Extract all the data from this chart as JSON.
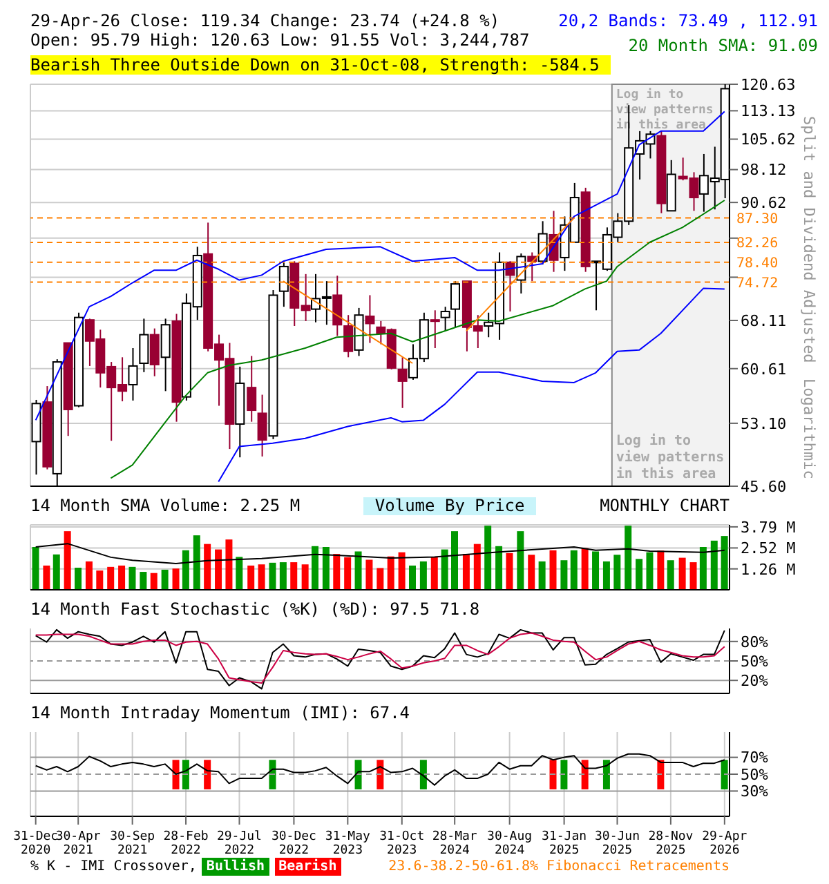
{
  "chart_data": [
    {
      "type": "candlestick",
      "title": "29-Apr-26 Close: 119.34 Change: 23.74 (+24.8 %)",
      "subtitle": "Open: 95.79 High: 120.63 Low: 91.55 Vol: 3,244,787",
      "ylabel": "Split and Dividend Adjusted",
      "annotations": [
        "Bearish Three Outside Down on 31-Oct-08, Strength: -584.5",
        "Logarithmic",
        "Log in to view patterns in this area"
      ],
      "x": [
        "2020-12-31",
        "2021-01-31",
        "2021-02-28",
        "2021-03-31",
        "2021-04-30",
        "2021-05-31",
        "2021-06-30",
        "2021-07-31",
        "2021-08-31",
        "2021-09-30",
        "2021-10-31",
        "2021-11-30",
        "2021-12-31",
        "2022-01-31",
        "2022-02-28",
        "2022-03-31",
        "2022-04-30",
        "2022-05-31",
        "2022-06-30",
        "2022-07-29",
        "2022-08-31",
        "2022-09-30",
        "2022-10-31",
        "2022-11-30",
        "2022-12-30",
        "2023-01-31",
        "2023-02-28",
        "2023-03-31",
        "2023-04-30",
        "2023-05-31",
        "2023-06-30",
        "2023-07-31",
        "2023-08-31",
        "2023-09-30",
        "2023-10-31",
        "2023-11-30",
        "2023-12-31",
        "2024-01-31",
        "2024-02-29",
        "2024-03-28",
        "2024-04-30",
        "2024-05-31",
        "2024-06-30",
        "2024-07-31",
        "2024-08-30",
        "2024-09-30",
        "2024-10-31",
        "2024-11-30",
        "2024-12-31",
        "2025-01-31",
        "2025-02-28",
        "2025-03-31",
        "2025-04-30",
        "2025-05-31",
        "2025-06-30",
        "2025-07-31",
        "2025-08-31",
        "2025-09-30",
        "2025-10-31",
        "2025-11-28",
        "2025-12-31",
        "2026-01-31",
        "2026-02-28",
        "2026-03-31",
        "2026-04-29"
      ],
      "ohlc": [
        [
          50.8,
          56.2,
          46.9,
          55.7
        ],
        [
          55.9,
          58.1,
          47.5,
          47.8
        ],
        [
          47.0,
          62.0,
          45.6,
          61.6
        ],
        [
          64.5,
          64.5,
          51.5,
          54.9
        ],
        [
          55.4,
          69.4,
          55.2,
          68.6
        ],
        [
          68.2,
          68.4,
          61.0,
          64.8
        ],
        [
          65.1,
          66.6,
          57.9,
          60.0
        ],
        [
          60.9,
          61.6,
          50.9,
          57.9
        ],
        [
          58.3,
          62.3,
          56.0,
          57.4
        ],
        [
          58.3,
          63.7,
          56.1,
          61.0
        ],
        [
          61.4,
          68.4,
          60.1,
          65.8
        ],
        [
          65.8,
          66.8,
          59.5,
          61.2
        ],
        [
          62.3,
          68.4,
          57.4,
          67.4
        ],
        [
          68.0,
          69.2,
          53.3,
          55.9
        ],
        [
          56.6,
          72.7,
          56.1,
          71.0
        ],
        [
          70.4,
          81.4,
          68.2,
          79.7
        ],
        [
          80.0,
          86.3,
          63.2,
          63.7
        ],
        [
          64.3,
          65.8,
          55.4,
          61.9
        ],
        [
          62.1,
          64.5,
          49.9,
          53.0
        ],
        [
          53.0,
          60.9,
          48.9,
          58.5
        ],
        [
          57.9,
          62.5,
          53.3,
          54.8
        ],
        [
          54.4,
          56.9,
          49.0,
          51.0
        ],
        [
          51.5,
          73.3,
          51.1,
          72.4
        ],
        [
          73.1,
          78.6,
          70.4,
          77.6
        ],
        [
          78.2,
          78.6,
          67.2,
          70.2
        ],
        [
          70.6,
          76.2,
          68.0,
          69.8
        ],
        [
          70.0,
          76.2,
          67.8,
          71.8
        ],
        [
          71.9,
          74.9,
          67.4,
          72.1
        ],
        [
          72.4,
          75.9,
          65.6,
          67.4
        ],
        [
          67.2,
          69.0,
          62.3,
          63.2
        ],
        [
          63.4,
          70.2,
          62.5,
          69.0
        ],
        [
          68.8,
          72.4,
          64.5,
          67.6
        ],
        [
          67.0,
          68.0,
          64.3,
          66.0
        ],
        [
          66.6,
          66.8,
          60.5,
          60.7
        ],
        [
          60.5,
          62.3,
          55.1,
          58.8
        ],
        [
          59.3,
          64.3,
          59.0,
          62.1
        ],
        [
          62.1,
          69.4,
          61.6,
          68.2
        ],
        [
          68.2,
          69.8,
          63.7,
          68.0
        ],
        [
          68.6,
          70.4,
          66.4,
          69.6
        ],
        [
          70.0,
          74.9,
          67.0,
          74.4
        ],
        [
          74.9,
          74.9,
          63.2,
          67.0
        ],
        [
          67.2,
          69.0,
          63.7,
          66.4
        ],
        [
          67.2,
          69.4,
          65.4,
          67.8
        ],
        [
          67.6,
          80.3,
          65.0,
          78.4
        ],
        [
          78.4,
          78.6,
          69.6,
          76.0
        ],
        [
          75.1,
          80.1,
          72.7,
          79.5
        ],
        [
          79.5,
          80.3,
          74.9,
          78.6
        ],
        [
          78.6,
          86.6,
          78.0,
          84.0
        ],
        [
          83.8,
          88.8,
          76.6,
          78.8
        ],
        [
          79.3,
          87.6,
          76.8,
          85.8
        ],
        [
          82.3,
          95.0,
          82.3,
          91.7
        ],
        [
          92.9,
          93.9,
          76.6,
          77.6
        ],
        [
          78.4,
          78.6,
          69.8,
          78.6
        ],
        [
          77.1,
          85.3,
          76.8,
          83.8
        ],
        [
          83.3,
          88.3,
          82.3,
          86.6
        ],
        [
          86.6,
          114.7,
          85.8,
          103.4
        ],
        [
          101.9,
          107.7,
          95.8,
          105.2
        ],
        [
          104.4,
          107.7,
          100.8,
          106.9
        ],
        [
          106.5,
          107.7,
          88.3,
          90.4
        ],
        [
          88.8,
          100.4,
          88.8,
          97.0
        ],
        [
          96.5,
          101.0,
          95.6,
          96.0
        ],
        [
          96.1,
          97.5,
          88.8,
          91.7
        ],
        [
          92.5,
          101.9,
          88.6,
          96.7
        ],
        [
          95.3,
          103.7,
          89.1,
          96.1
        ],
        [
          95.79,
          120.63,
          91.55,
          119.34
        ]
      ],
      "colors": [
        "#ffffff",
        "#990033",
        "#ffffff",
        "#990033",
        "#ffffff",
        "#990033",
        "#990033",
        "#990033",
        "#990033",
        "#ffffff",
        "#ffffff",
        "#990033",
        "#ffffff",
        "#990033",
        "#ffffff",
        "#ffffff",
        "#990033",
        "#990033",
        "#990033",
        "#ffffff",
        "#990033",
        "#990033",
        "#ffffff",
        "#ffffff",
        "#990033",
        "#990033",
        "#ffffff",
        "#ffffff",
        "#990033",
        "#990033",
        "#ffffff",
        "#990033",
        "#990033",
        "#990033",
        "#990033",
        "#ffffff",
        "#ffffff",
        "#990033",
        "#ffffff",
        "#ffffff",
        "#990033",
        "#990033",
        "#ffffff",
        "#ffffff",
        "#990033",
        "#ffffff",
        "#990033",
        "#ffffff",
        "#990033",
        "#ffffff",
        "#ffffff",
        "#990033",
        "#ffffff",
        "#ffffff",
        "#ffffff",
        "#ffffff",
        "#ffffff",
        "#ffffff",
        "#990033",
        "#ffffff",
        "#990033",
        "#990033",
        "#ffffff",
        "#ffffff",
        "#ffffff"
      ],
      "series": [
        {
          "type": "line",
          "name": "20,2 Bands: 73.49 , 112.91",
          "color": "#0000ff",
          "x": [
            "2020-12-31",
            "2021-02-28",
            "2021-05-31",
            "2021-07-31",
            "2021-09-30",
            "2021-11-30",
            "2022-01-31",
            "2022-03-31",
            "2022-05-31",
            "2022-07-29",
            "2022-09-30",
            "2022-11-30",
            "2023-03-31",
            "2023-08-31",
            "2023-11-30",
            "2024-03-28",
            "2024-05-31",
            "2024-07-31",
            "2024-11-30",
            "2025-02-28",
            "2025-06-30",
            "2025-08-31",
            "2025-10-31",
            "2026-02-28",
            "2026-04-29"
          ],
          "values": [
            53.5,
            59.6,
            70.4,
            72.2,
            74.6,
            76.9,
            76.9,
            78.8,
            77.1,
            75.1,
            76.0,
            78.6,
            80.9,
            81.4,
            78.6,
            79.3,
            76.9,
            76.9,
            78.1,
            87.6,
            92.5,
            104.2,
            107.7,
            107.7,
            112.91
          ]
        },
        {
          "type": "line",
          "color": "#0000ff",
          "x": [
            "2022-05-31",
            "2022-07-29",
            "2022-10-31",
            "2023-01-31",
            "2023-05-31",
            "2023-09-30",
            "2023-10-31",
            "2023-12-31",
            "2024-02-29",
            "2024-05-31",
            "2024-07-31",
            "2024-11-30",
            "2025-02-28",
            "2025-04-30",
            "2025-06-30",
            "2025-08-31",
            "2025-10-31",
            "2026-02-28",
            "2026-04-29"
          ],
          "values": [
            46.1,
            50.2,
            50.6,
            51.2,
            52.7,
            53.8,
            53.3,
            53.5,
            55.6,
            60.1,
            60.1,
            58.8,
            58.6,
            60.0,
            63.2,
            63.4,
            66.0,
            73.6,
            73.49
          ]
        },
        {
          "type": "line",
          "name": "20 Month SMA: 91.09",
          "color": "#008000",
          "x": [
            "2021-07-31",
            "2021-09-30",
            "2021-12-31",
            "2022-02-28",
            "2022-04-30",
            "2022-06-30",
            "2022-09-30",
            "2023-01-31",
            "2023-04-30",
            "2023-09-30",
            "2023-11-30",
            "2024-02-29",
            "2024-05-31",
            "2024-07-31",
            "2024-12-31",
            "2025-03-31",
            "2025-05-31",
            "2025-06-30",
            "2025-09-30",
            "2025-12-31",
            "2026-03-31",
            "2026-04-29"
          ],
          "values": [
            46.5,
            48.0,
            53.2,
            56.8,
            60.0,
            61.1,
            61.9,
            63.7,
            65.4,
            66.0,
            64.7,
            66.4,
            68.2,
            68.0,
            70.6,
            73.5,
            74.9,
            77.6,
            82.3,
            85.3,
            89.6,
            91.09
          ]
        },
        {
          "type": "line",
          "color": "#ff8000",
          "x": [
            "2022-11-30",
            "2023-11-30"
          ],
          "values": [
            74.9,
            61.4
          ]
        },
        {
          "type": "line",
          "color": "#ff8000",
          "x": [
            "2024-04-30",
            "2025-02-28"
          ],
          "values": [
            66.4,
            87.3
          ]
        }
      ],
      "xlim": [
        "2020-12-16",
        "2026-05-13"
      ],
      "xticks": [
        "2020-12-31",
        "2021-04-30",
        "2021-09-30",
        "2022-02-28",
        "2022-07-29",
        "2022-12-30",
        "2023-05-31",
        "2023-10-31",
        "2024-03-28",
        "2024-08-30",
        "2025-01-31",
        "2025-06-30",
        "2025-11-28",
        "2026-04-29"
      ],
      "ylim": [
        45.6,
        120.63
      ],
      "yticks": [
        {
          "value": 45.6,
          "label": "45.60"
        },
        {
          "value": 53.1,
          "label": "53.10"
        },
        60.61,
        68.11,
        {
          "value": 75.62,
          "label": null
        },
        {
          "value": 83.12,
          "label": null
        },
        90.62,
        98.12,
        105.62,
        113.13,
        120.63
      ],
      "log": "y",
      "grid": true,
      "legend": "top right",
      "tick_labels": "y",
      "ref_lines": [
        {
          "axis": "y",
          "value": 87.3,
          "label": "87.30",
          "color": "#ff8000",
          "line_style": "dashed"
        },
        {
          "axis": "y",
          "value": 82.26,
          "label": "82.26",
          "color": "#ff8000",
          "line_style": "dashed"
        },
        {
          "axis": "y",
          "value": 78.4,
          "label": "78.40",
          "color": "#ff8000",
          "line_style": "dashed"
        },
        {
          "axis": "y",
          "value": 74.72,
          "label": "74.72",
          "color": "#ff8000",
          "line_style": "dashed"
        }
      ],
      "bands": [
        {
          "axis": "x",
          "from": "2025-06-15",
          "to": "2026-05-13",
          "label": "Log in to view patterns in this area",
          "color": "#f2f2f2"
        }
      ]
    },
    {
      "type": "bar",
      "title": "14 Month SMA Volume: 2.25 M",
      "annotations": [
        "Volume By Price",
        "MONTHLY CHART"
      ],
      "x": [
        "2020-12-31",
        "2021-01-31",
        "2021-02-28",
        "2021-03-31",
        "2021-04-30",
        "2021-05-31",
        "2021-06-30",
        "2021-07-31",
        "2021-08-31",
        "2021-09-30",
        "2021-10-31",
        "2021-11-30",
        "2021-12-31",
        "2022-01-31",
        "2022-02-28",
        "2022-03-31",
        "2022-04-30",
        "2022-05-31",
        "2022-06-30",
        "2022-07-29",
        "2022-08-31",
        "2022-09-30",
        "2022-10-31",
        "2022-11-30",
        "2022-12-30",
        "2023-01-31",
        "2023-02-28",
        "2023-03-31",
        "2023-04-30",
        "2023-05-31",
        "2023-06-30",
        "2023-07-31",
        "2023-08-31",
        "2023-09-30",
        "2023-10-31",
        "2023-11-30",
        "2023-12-31",
        "2024-01-31",
        "2024-02-29",
        "2024-03-28",
        "2024-04-30",
        "2024-05-31",
        "2024-06-30",
        "2024-07-31",
        "2024-08-30",
        "2024-09-30",
        "2024-10-31",
        "2024-11-30",
        "2024-12-31",
        "2025-01-31",
        "2025-02-28",
        "2025-03-31",
        "2025-04-30",
        "2025-05-31",
        "2025-06-30",
        "2025-07-31",
        "2025-08-31",
        "2025-09-30",
        "2025-10-31",
        "2025-11-28",
        "2025-12-31",
        "2026-01-31",
        "2026-02-28",
        "2026-03-31",
        "2026-04-29"
      ],
      "series": [
        {
          "type": "bar",
          "values": [
            2.58,
            1.46,
            2.13,
            3.53,
            1.33,
            1.71,
            1.16,
            1.38,
            1.46,
            1.38,
            1.08,
            1.01,
            1.21,
            1.28,
            2.38,
            3.28,
            2.76,
            2.43,
            3.03,
            1.98,
            1.46,
            1.53,
            1.63,
            1.66,
            1.66,
            1.53,
            2.63,
            2.58,
            2.16,
            1.96,
            2.31,
            1.81,
            1.31,
            2.01,
            2.26,
            1.46,
            1.71,
            1.98,
            2.43,
            3.53,
            2.16,
            2.76,
            3.86,
            2.63,
            2.21,
            3.53,
            2.11,
            1.71,
            2.38,
            1.78,
            2.38,
            2.51,
            2.31,
            1.71,
            2.11,
            3.86,
            1.86,
            2.26,
            2.36,
            1.78,
            1.93,
            1.66,
            2.58,
            2.96,
            3.24
          ],
          "colors": [
            "#009900",
            "#ff0000",
            "#009900",
            "#ff0000",
            "#009900",
            "#ff0000",
            "#ff0000",
            "#ff0000",
            "#ff0000",
            "#009900",
            "#009900",
            "#ff0000",
            "#009900",
            "#ff0000",
            "#009900",
            "#009900",
            "#ff0000",
            "#ff0000",
            "#ff0000",
            "#009900",
            "#ff0000",
            "#ff0000",
            "#009900",
            "#009900",
            "#ff0000",
            "#ff0000",
            "#009900",
            "#009900",
            "#ff0000",
            "#ff0000",
            "#009900",
            "#ff0000",
            "#ff0000",
            "#ff0000",
            "#ff0000",
            "#009900",
            "#009900",
            "#ff0000",
            "#009900",
            "#009900",
            "#ff0000",
            "#ff0000",
            "#009900",
            "#009900",
            "#ff0000",
            "#009900",
            "#ff0000",
            "#009900",
            "#ff0000",
            "#009900",
            "#009900",
            "#ff0000",
            "#009900",
            "#009900",
            "#009900",
            "#009900",
            "#009900",
            "#009900",
            "#ff0000",
            "#009900",
            "#ff0000",
            "#ff0000",
            "#009900",
            "#009900",
            "#009900"
          ]
        },
        {
          "type": "line",
          "color": "#000000",
          "x": [
            "2020-12-31",
            "2021-03-31",
            "2021-07-31",
            "2021-09-30",
            "2022-01-31",
            "2022-04-30",
            "2022-09-30",
            "2023-02-28",
            "2023-04-30",
            "2023-09-30",
            "2024-01-31",
            "2024-07-31",
            "2024-10-31",
            "2025-02-28",
            "2025-04-30",
            "2025-07-31",
            "2025-09-30",
            "2026-02-28",
            "2026-04-29"
          ],
          "values": [
            2.58,
            2.78,
            1.96,
            1.78,
            1.58,
            1.76,
            1.88,
            2.13,
            2.08,
            1.91,
            1.98,
            2.28,
            2.41,
            2.58,
            2.38,
            2.46,
            2.33,
            2.26,
            2.38
          ]
        }
      ],
      "xlim": [
        "2020-12-16",
        "2026-05-13"
      ],
      "xticks": [
        "2020-12-31",
        "2021-04-30",
        "2021-09-30",
        "2022-02-28",
        "2022-07-29",
        "2022-12-30",
        "2023-05-31",
        "2023-10-31",
        "2024-03-28",
        "2024-08-30",
        "2025-01-31",
        "2025-06-30",
        "2025-11-28",
        "2026-04-29"
      ],
      "ylim": [
        0,
        3.91
      ],
      "yticks": [
        {
          "value": 1.26,
          "label": "1.26 M"
        },
        {
          "value": 2.52,
          "label": "2.52 M"
        },
        {
          "value": 3.79,
          "label": "3.79 M"
        }
      ],
      "grid": true,
      "tick_labels": "y"
    },
    {
      "type": "line",
      "title": "14 Month Fast Stochastic (%K) (%D): 97.5 71.8",
      "x": [
        "2020-12-31",
        "2021-01-31",
        "2021-02-28",
        "2021-03-31",
        "2021-04-30",
        "2021-05-31",
        "2021-06-30",
        "2021-07-31",
        "2021-08-31",
        "2021-09-30",
        "2021-10-31",
        "2021-11-30",
        "2021-12-31",
        "2022-01-31",
        "2022-02-28",
        "2022-03-31",
        "2022-04-30",
        "2022-05-31",
        "2022-06-30",
        "2022-07-29",
        "2022-08-31",
        "2022-09-30",
        "2022-10-31",
        "2022-11-30",
        "2022-12-30",
        "2023-01-31",
        "2023-02-28",
        "2023-03-31",
        "2023-04-30",
        "2023-05-31",
        "2023-06-30",
        "2023-07-31",
        "2023-08-31",
        "2023-09-30",
        "2023-10-31",
        "2023-11-30",
        "2023-12-31",
        "2024-01-31",
        "2024-02-29",
        "2024-03-28",
        "2024-04-30",
        "2024-05-31",
        "2024-06-30",
        "2024-07-31",
        "2024-08-30",
        "2024-09-30",
        "2024-10-31",
        "2024-11-30",
        "2024-12-31",
        "2025-01-31",
        "2025-02-28",
        "2025-03-31",
        "2025-04-30",
        "2025-05-31",
        "2025-06-30",
        "2025-07-31",
        "2025-08-31",
        "2025-09-30",
        "2025-10-31",
        "2025-11-28",
        "2025-12-31",
        "2026-01-31",
        "2026-02-28",
        "2026-03-31",
        "2026-04-29"
      ],
      "series": [
        {
          "color": "#000000",
          "values": [
            89,
            79,
            98,
            85,
            95,
            91,
            88,
            76,
            74,
            79,
            88,
            79,
            95,
            47,
            95,
            95,
            37,
            34,
            12,
            24,
            18,
            7,
            63,
            76,
            58,
            56,
            60,
            61,
            53,
            42,
            68,
            66,
            63,
            42,
            37,
            42,
            58,
            55,
            69,
            93,
            60,
            56,
            61,
            91,
            85,
            98,
            93,
            93,
            67,
            86,
            86,
            44,
            45,
            60,
            69,
            79,
            81,
            83,
            48,
            61,
            56,
            51,
            60,
            60,
            97
          ]
        },
        {
          "color": "#cc0044",
          "values": [
            90,
            90,
            91,
            91,
            91,
            88,
            82,
            76,
            76,
            76,
            80,
            82,
            82,
            74,
            79,
            80,
            76,
            53,
            24,
            21,
            18,
            16,
            40,
            66,
            63,
            61,
            60,
            61,
            57,
            52,
            56,
            61,
            65,
            53,
            39,
            42,
            47,
            50,
            54,
            74,
            74,
            66,
            60,
            72,
            85,
            91,
            93,
            88,
            82,
            80,
            79,
            65,
            52,
            56,
            66,
            76,
            80,
            74,
            67,
            63,
            58,
            56,
            56,
            58,
            72
          ]
        }
      ],
      "xlim": [
        "2020-12-16",
        "2026-05-13"
      ],
      "xticks": [
        "2020-12-31",
        "2021-04-30",
        "2021-09-30",
        "2022-02-28",
        "2022-07-29",
        "2022-12-30",
        "2023-05-31",
        "2023-10-31",
        "2024-03-28",
        "2024-08-30",
        "2025-01-31",
        "2025-06-30",
        "2025-11-28",
        "2026-04-29"
      ],
      "ylim": [
        0,
        100
      ],
      "yticks": [
        {
          "value": 20,
          "label": "20%"
        },
        {
          "value": 50,
          "label": "50%"
        },
        {
          "value": 80,
          "label": "80%"
        }
      ],
      "grid": "x",
      "tick_labels": "y",
      "ref_lines": [
        {
          "axis": "y",
          "value": 20,
          "color": "#999999"
        },
        {
          "axis": "y",
          "value": 50,
          "color": "#999999",
          "line_style": "dashed"
        },
        {
          "axis": "y",
          "value": 80,
          "color": "#999999"
        }
      ]
    },
    {
      "type": "line",
      "title": "14 Month Intraday Momentum (IMI): 67.4",
      "legend_title": "% K - IMI Crossover,",
      "annotations": [
        "23.6-38.2-50-61.8% Fibonacci Retracements"
      ],
      "x": [
        "2020-12-31",
        "2021-01-31",
        "2021-02-28",
        "2021-03-31",
        "2021-04-30",
        "2021-05-31",
        "2021-06-30",
        "2021-07-31",
        "2021-08-31",
        "2021-09-30",
        "2021-10-31",
        "2021-11-30",
        "2021-12-31",
        "2022-01-31",
        "2022-02-28",
        "2022-03-31",
        "2022-04-30",
        "2022-05-31",
        "2022-06-30",
        "2022-07-29",
        "2022-08-31",
        "2022-09-30",
        "2022-10-31",
        "2022-11-30",
        "2022-12-30",
        "2023-01-31",
        "2023-02-28",
        "2023-03-31",
        "2023-04-30",
        "2023-05-31",
        "2023-06-30",
        "2023-07-31",
        "2023-08-31",
        "2023-09-30",
        "2023-10-31",
        "2023-11-30",
        "2023-12-31",
        "2024-01-31",
        "2024-02-29",
        "2024-03-28",
        "2024-04-30",
        "2024-05-31",
        "2024-06-30",
        "2024-07-31",
        "2024-08-30",
        "2024-09-30",
        "2024-10-31",
        "2024-11-30",
        "2024-12-31",
        "2025-01-31",
        "2025-02-28",
        "2025-03-31",
        "2025-04-30",
        "2025-05-31",
        "2025-06-30",
        "2025-07-31",
        "2025-08-31",
        "2025-09-30",
        "2025-10-31",
        "2025-11-28",
        "2025-12-31",
        "2026-01-31",
        "2026-02-28",
        "2026-03-31",
        "2026-04-29"
      ],
      "series": [
        {
          "color": "#000000",
          "values": [
            60,
            55,
            59,
            53,
            59,
            71,
            66,
            59,
            62,
            64,
            62,
            59,
            62,
            50,
            54,
            62,
            54,
            53,
            39,
            45,
            45,
            45,
            56,
            56,
            52,
            52,
            54,
            58,
            48,
            39,
            53,
            53,
            59,
            52,
            53,
            57,
            48,
            37,
            48,
            55,
            45,
            45,
            50,
            64,
            56,
            60,
            60,
            72,
            67,
            70,
            72,
            57,
            57,
            60,
            69,
            74,
            74,
            72,
            64,
            64,
            64,
            59,
            63,
            63,
            67
          ]
        },
        {
          "type": "bar",
          "name": "Bullish",
          "color": "#009900",
          "x": [
            "2022-02-28",
            "2022-10-31",
            "2023-06-30",
            "2023-12-31",
            "2025-01-31",
            "2025-05-31",
            "2026-04-29"
          ],
          "base": [
            32,
            32,
            32,
            32,
            32,
            32,
            32
          ],
          "values": [
            35,
            35,
            35,
            35,
            35,
            35,
            35
          ]
        },
        {
          "type": "bar",
          "name": "Bearish",
          "color": "#ff0000",
          "x": [
            "2022-01-31",
            "2022-04-30",
            "2023-08-31",
            "2024-12-31",
            "2025-03-31",
            "2025-10-31"
          ],
          "base": [
            32,
            32,
            32,
            32,
            32,
            32
          ],
          "values": [
            35,
            35,
            35,
            35,
            35,
            35
          ]
        }
      ],
      "xlim": [
        "2020-12-16",
        "2026-05-13"
      ],
      "xticks": [
        {
          "value": "2020-12-31",
          "label": "31-Dec 2020"
        },
        {
          "value": "2021-04-30",
          "label": "30-Apr 2021"
        },
        {
          "value": "2021-09-30",
          "label": "30-Sep 2021"
        },
        {
          "value": "2022-02-28",
          "label": "28-Feb 2022"
        },
        {
          "value": "2022-07-29",
          "label": "29-Jul 2022"
        },
        {
          "value": "2022-12-30",
          "label": "30-Dec 2022"
        },
        {
          "value": "2023-05-31",
          "label": "31-May 2023"
        },
        {
          "value": "2023-10-31",
          "label": "31-Oct 2023"
        },
        {
          "value": "2024-03-28",
          "label": "28-Mar 2024"
        },
        {
          "value": "2024-08-30",
          "label": "30-Aug 2024"
        },
        {
          "value": "2025-01-31",
          "label": "31-Jan 2025"
        },
        {
          "value": "2025-06-30",
          "label": "30-Jun 2025"
        },
        {
          "value": "2025-11-28",
          "label": "28-Nov 2025"
        },
        {
          "value": "2026-04-29",
          "label": "29-Apr 2026"
        }
      ],
      "ylim": [
        0,
        100
      ],
      "yticks": [
        {
          "value": 30,
          "label": "30%"
        },
        {
          "value": 50,
          "label": "50%"
        },
        {
          "value": 70,
          "label": "70%"
        }
      ],
      "grid": "x",
      "legend": "bottom",
      "ref_lines": [
        {
          "axis": "y",
          "value": 30,
          "color": "#999999"
        },
        {
          "axis": "y",
          "value": 50,
          "color": "#999999",
          "line_style": "dashed"
        },
        {
          "axis": "y",
          "value": 70,
          "color": "#999999"
        }
      ]
    }
  ]
}
